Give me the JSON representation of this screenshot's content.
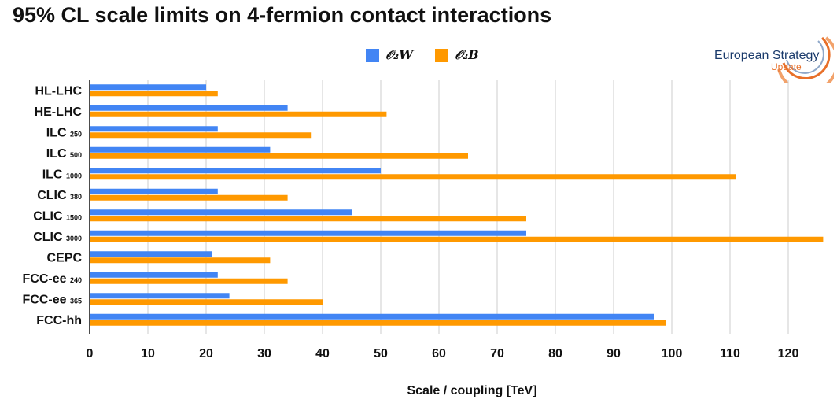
{
  "title": "95% CL scale limits on 4-fermion contact interactions",
  "logo": {
    "line1": "European Strategy",
    "line2": "Update"
  },
  "colors": {
    "series1": "#4285f4",
    "series2": "#ff9900",
    "grid": "#cccccc",
    "axis": "#111111"
  },
  "chart_data": {
    "type": "bar",
    "orientation": "horizontal",
    "title": "95% CL scale limits on 4-fermion contact interactions",
    "xlabel": "Scale / coupling [TeV]",
    "ylabel": "",
    "xlim": [
      0,
      130
    ],
    "xticks": [
      0,
      10,
      20,
      30,
      40,
      50,
      60,
      70,
      80,
      90,
      100,
      110,
      120
    ],
    "legend_position": "top-center",
    "grid": true,
    "categories": [
      {
        "label": "HL-LHC",
        "sub": ""
      },
      {
        "label": "HE-LHC",
        "sub": ""
      },
      {
        "label": "ILC",
        "sub": "250"
      },
      {
        "label": "ILC",
        "sub": "500"
      },
      {
        "label": "ILC",
        "sub": "1000"
      },
      {
        "label": "CLIC",
        "sub": "380"
      },
      {
        "label": "CLIC",
        "sub": "1500"
      },
      {
        "label": "CLIC",
        "sub": "3000"
      },
      {
        "label": "CEPC",
        "sub": ""
      },
      {
        "label": "FCC-ee",
        "sub": "240"
      },
      {
        "label": "FCC-ee",
        "sub": "365"
      },
      {
        "label": "FCC-hh",
        "sub": ""
      }
    ],
    "series": [
      {
        "name": "𝒪₂W",
        "values": [
          20,
          34,
          22,
          31,
          50,
          22,
          45,
          75,
          21,
          22,
          24,
          97
        ]
      },
      {
        "name": "𝒪₂B",
        "values": [
          22,
          51,
          38,
          65,
          111,
          34,
          75,
          126,
          31,
          34,
          40,
          99
        ]
      }
    ]
  }
}
